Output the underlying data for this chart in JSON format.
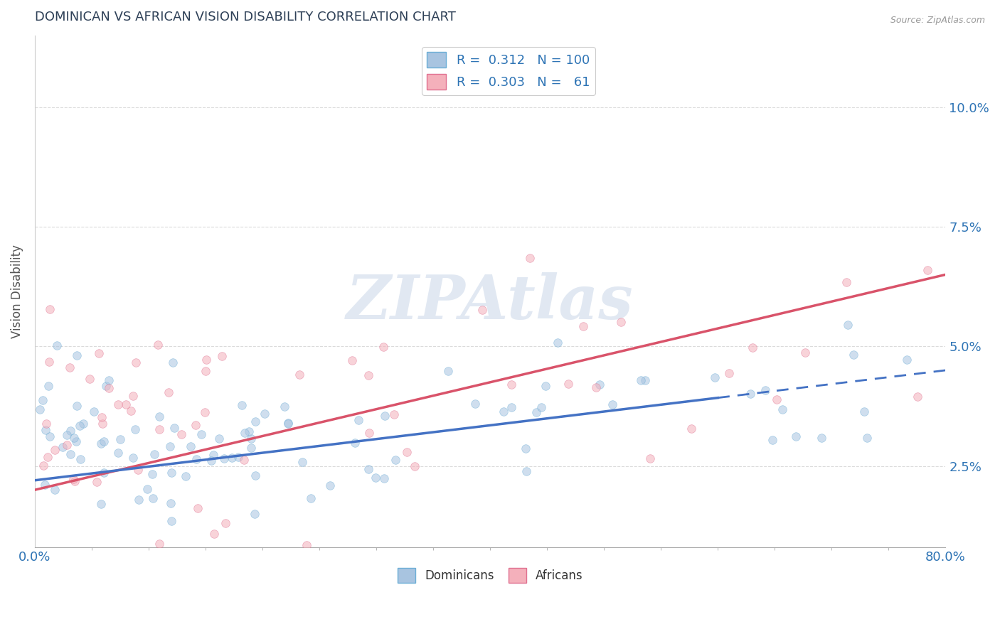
{
  "title": "DOMINICAN VS AFRICAN VISION DISABILITY CORRELATION CHART",
  "source": "Source: ZipAtlas.com",
  "ylabel": "Vision Disability",
  "xlim": [
    0.0,
    80.0
  ],
  "ylim": [
    0.8,
    11.5
  ],
  "yticks": [
    2.5,
    5.0,
    7.5,
    10.0
  ],
  "ytick_labels": [
    "2.5%",
    "5.0%",
    "7.5%",
    "10.0%"
  ],
  "dominicans_color": "#a8c4e0",
  "dominicans_edge_color": "#6baed6",
  "dominicans_line_color": "#4472c4",
  "africans_color": "#f4b0bb",
  "africans_edge_color": "#e07090",
  "africans_line_color": "#d9536a",
  "legend_R1": "0.312",
  "legend_N1": "100",
  "legend_R2": "0.303",
  "legend_N2": "61",
  "dominicans_label": "Dominicans",
  "africans_label": "Africans",
  "title_color": "#2e4057",
  "axis_label_color": "#2e74b5",
  "dot_size": 70,
  "dot_alpha": 0.55,
  "watermark_text": "ZIPAtlas",
  "background_color": "#ffffff",
  "grid_color": "#cccccc",
  "dashed_start_x": 60.0
}
